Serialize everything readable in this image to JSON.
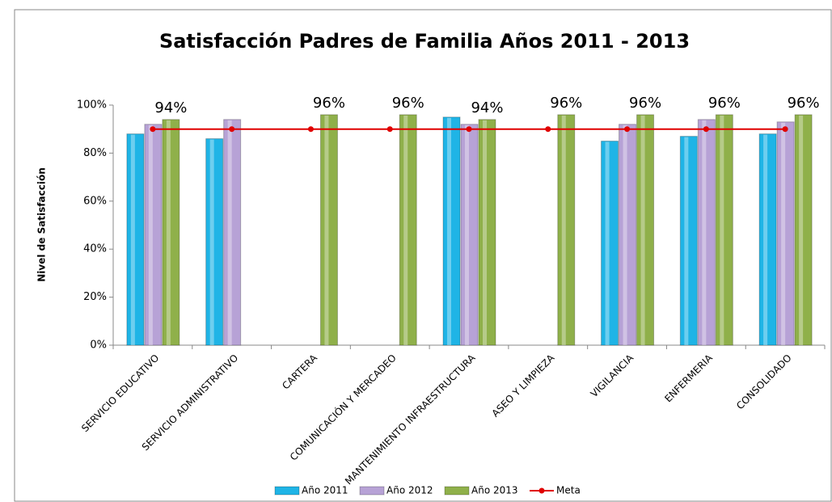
{
  "chart_data": {
    "type": "bar",
    "title": "Satisfacción Padres de Familia Años 2011 - 2013",
    "y_label": "Nivel de Satisfacción",
    "categories": [
      "SERVICIO EDUCATIVO",
      "SERVICIO ADMINISTRATIVO",
      "CARTERA",
      "COMUNICACIÓN Y MERCADEO",
      "MANTENIMIENTO INFRAESTRUCTURA",
      "ASEO Y LIMPIEZA",
      "VIGILANCIA",
      "ENFERMERIA",
      "CONSOLIDADO"
    ],
    "series": [
      {
        "name": "Año 2011",
        "color": "#1fb4e6",
        "values": [
          88,
          86,
          null,
          null,
          95,
          null,
          85,
          87,
          88
        ]
      },
      {
        "name": "Año 2012",
        "color": "#b7a2d6",
        "values": [
          92,
          94,
          null,
          null,
          92,
          null,
          92,
          94,
          93
        ]
      },
      {
        "name": "Año 2013",
        "color": "#8fb04a",
        "values": [
          94,
          null,
          96,
          96,
          94,
          96,
          96,
          96,
          96
        ],
        "value_labels": [
          "94%",
          null,
          "96%",
          "96%",
          "94%",
          "96%",
          "96%",
          "96%",
          "96%"
        ]
      },
      {
        "name": "Meta",
        "color": "#e00000",
        "type": "line",
        "values": [
          90,
          90,
          90,
          90,
          90,
          90,
          90,
          90,
          90
        ]
      }
    ],
    "ylim": [
      0,
      100
    ],
    "yticks": [
      {
        "value": 0,
        "label": "0%"
      },
      {
        "value": 20,
        "label": "20%"
      },
      {
        "value": 40,
        "label": "40%"
      },
      {
        "value": 60,
        "label": "60%"
      },
      {
        "value": 80,
        "label": "80%"
      },
      {
        "value": 100,
        "label": "100%"
      }
    ],
    "legend": "bottom"
  }
}
